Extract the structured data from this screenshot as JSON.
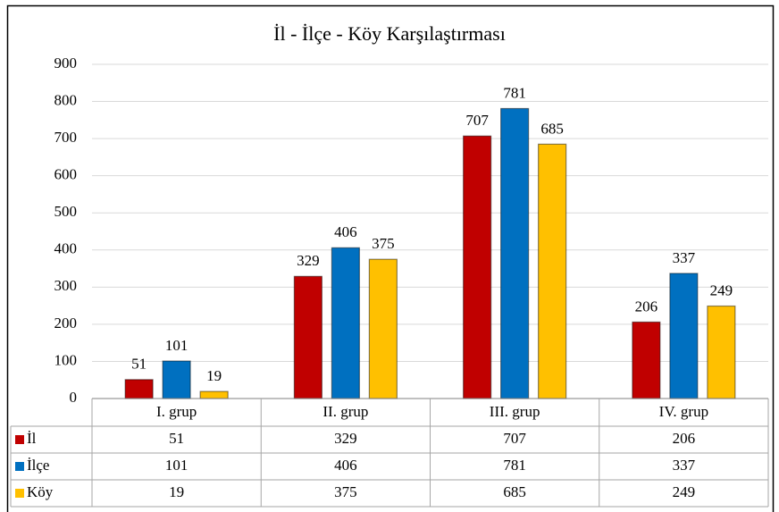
{
  "chart_data": {
    "type": "bar",
    "title": "İl - İlçe - Köy Karşılaştırması",
    "categories": [
      "I. grup",
      "II. grup",
      "III. grup",
      "IV. grup"
    ],
    "series": [
      {
        "name": "İl",
        "color": "#c00000",
        "values": [
          51,
          329,
          707,
          206
        ]
      },
      {
        "name": "İlçe",
        "color": "#0070c0",
        "values": [
          101,
          406,
          781,
          337
        ]
      },
      {
        "name": "Köy",
        "color": "#ffc000",
        "values": [
          19,
          375,
          685,
          249
        ]
      }
    ],
    "ylim": [
      0,
      900
    ],
    "yticks": [
      0,
      100,
      200,
      300,
      400,
      500,
      600,
      700,
      800,
      900
    ],
    "grid": true
  }
}
